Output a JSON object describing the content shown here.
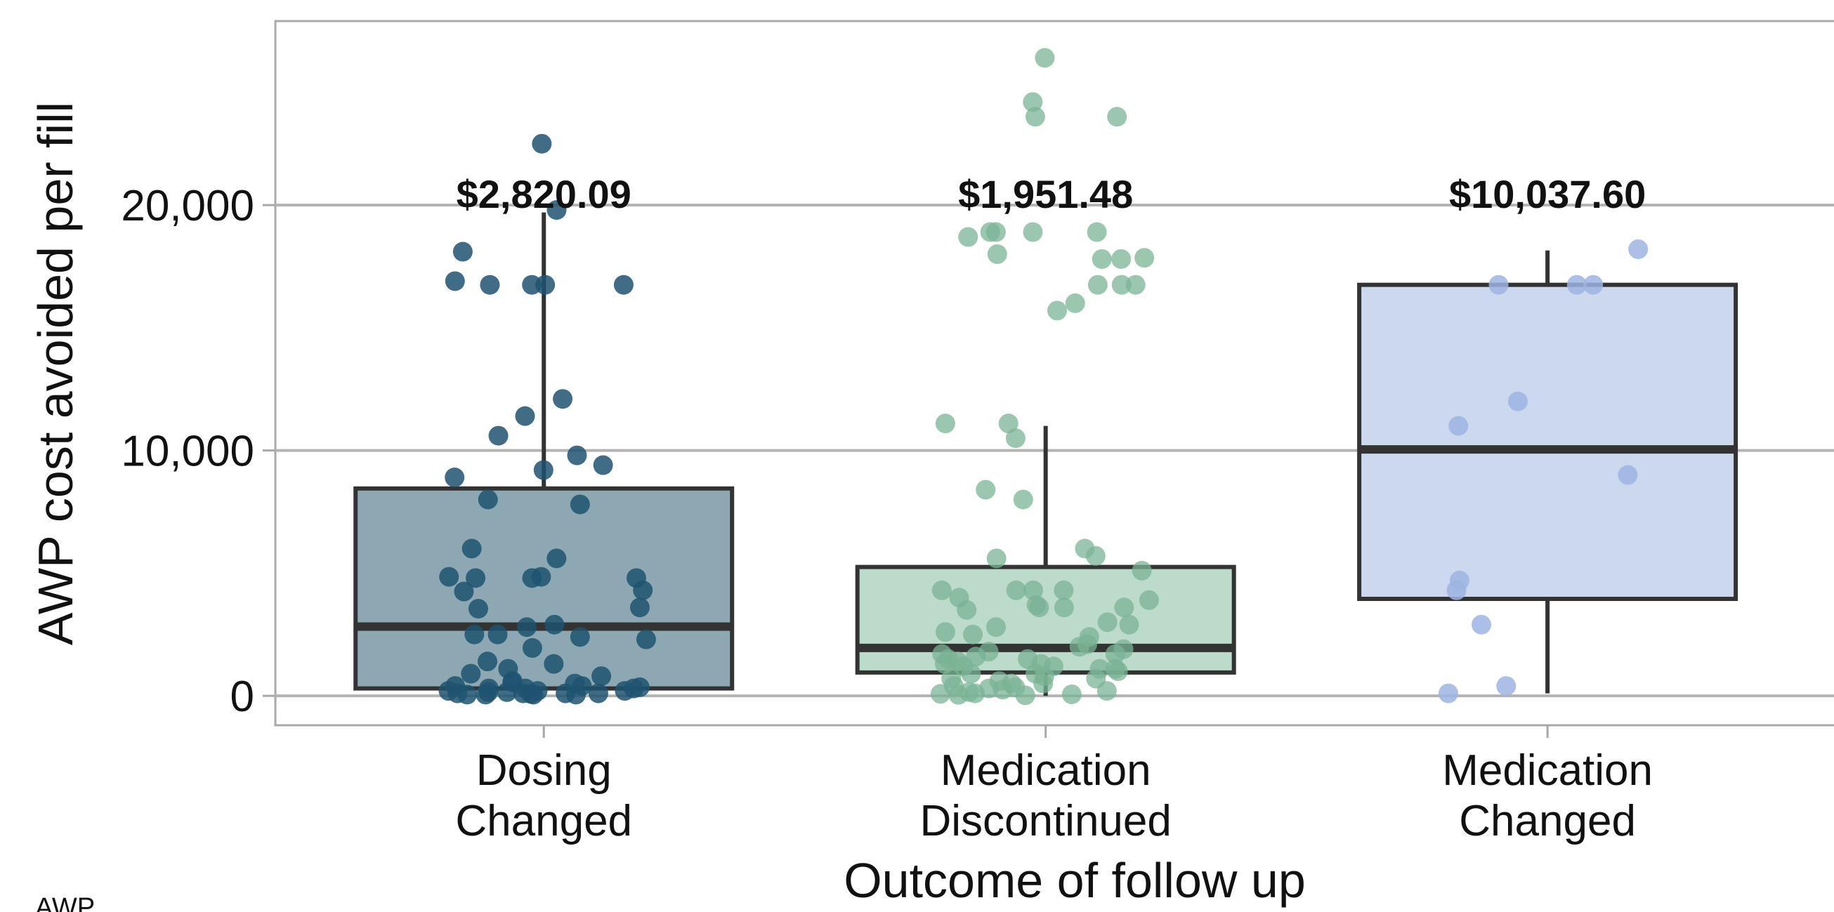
{
  "chart_data": {
    "type": "box",
    "xlabel": "Outcome of follow up",
    "ylabel": "AWP cost avoided per fill",
    "ylim": [
      -1200,
      27500
    ],
    "yticks": [
      {
        "value": 0,
        "label": "0"
      },
      {
        "value": 10000,
        "label": "10,000"
      },
      {
        "value": 20000,
        "label": "20,000"
      }
    ],
    "grid": "horizontal",
    "footnote": "AWP",
    "categories": [
      {
        "label_lines": [
          "Dosing",
          "Changed"
        ],
        "fill": "#8ea8b3",
        "point_color": "#1e5470",
        "point_opacity": 0.85,
        "box": {
          "whisker_low": 300,
          "q1": 300,
          "median": 2820,
          "q3": 8450,
          "whisker_high": 19700
        },
        "annotation": "$2,820.09",
        "points": [
          22500,
          19800,
          18100,
          16750,
          16750,
          16750,
          16900,
          16750,
          12100,
          11400,
          10600,
          9400,
          9800,
          8900,
          9200,
          8000,
          7800,
          6000,
          5600,
          4850,
          4800,
          4850,
          4800,
          4300,
          4250,
          4800,
          3600,
          3550,
          2800,
          2900,
          2400,
          2500,
          2500,
          2300,
          1950,
          1400,
          1300,
          1100,
          900,
          800,
          600,
          550,
          400,
          300,
          300,
          200,
          200,
          150,
          100,
          100,
          100,
          50,
          50,
          50,
          50,
          100,
          200,
          300,
          400,
          500,
          350,
          150,
          80
        ]
      },
      {
        "label_lines": [
          "Medication",
          "Discontinued"
        ],
        "fill": "#bcdbcb",
        "point_color": "#7ab394",
        "point_opacity": 0.75,
        "box": {
          "whisker_low": 0,
          "q1": 950,
          "median": 1951,
          "q3": 5250,
          "whisker_high": 11000
        },
        "annotation": "$1,951.48",
        "points": [
          26000,
          24200,
          23600,
          23600,
          18900,
          18900,
          18900,
          18900,
          18700,
          18000,
          17800,
          17800,
          17850,
          16750,
          16750,
          16750,
          16000,
          15700,
          11100,
          11100,
          10500,
          8400,
          8000,
          6000,
          5700,
          5600,
          5100,
          4300,
          4300,
          4300,
          4300,
          4000,
          3900,
          3700,
          3600,
          3600,
          3600,
          3500,
          3000,
          2900,
          2800,
          2600,
          2500,
          2400,
          2100,
          2000,
          1900,
          1800,
          1700,
          1600,
          1500,
          1400,
          1300,
          1200,
          1100,
          1000,
          900,
          800,
          700,
          600,
          500,
          400,
          350,
          300,
          250,
          200,
          150,
          100,
          80,
          60,
          40,
          20,
          1200,
          1300,
          1500,
          1700,
          1100,
          900,
          700,
          500
        ]
      },
      {
        "label_lines": [
          "Medication",
          "Changed"
        ],
        "fill": "#cbd8ee",
        "point_color": "#9eb4e2",
        "point_opacity": 0.85,
        "box": {
          "whisker_low": 100,
          "q1": 3950,
          "median": 10040,
          "q3": 16750,
          "whisker_high": 18150
        },
        "annotation": "$10,037.60",
        "points": [
          18200,
          16750,
          16750,
          16750,
          12000,
          11000,
          9000,
          4700,
          4300,
          2900,
          400,
          100
        ]
      }
    ]
  }
}
